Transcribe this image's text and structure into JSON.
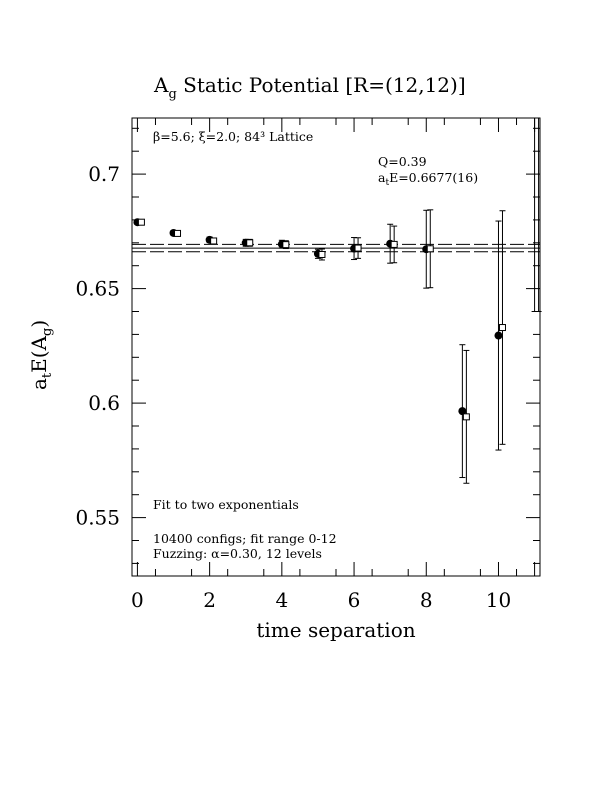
{
  "chart_data": {
    "type": "scatter",
    "title_main": "A",
    "title_sub": "g",
    "title_rest": " Static Potential [R=(12,12)]",
    "xlabel": "time separation",
    "ylabel_parts": [
      "a",
      "t",
      "E(A",
      "g",
      ")"
    ],
    "xlim": [
      -0.15,
      11.15
    ],
    "ylim": [
      0.5245,
      0.7245
    ],
    "xticks": [
      0,
      2,
      4,
      6,
      8,
      10
    ],
    "xtick_labels": [
      "0",
      "2",
      "4",
      "6",
      "8",
      "10"
    ],
    "yticks": [
      0.55,
      0.6,
      0.65,
      0.7
    ],
    "ytick_labels": [
      "0.55",
      "0.6",
      "0.65",
      "0.7"
    ],
    "annotations": {
      "lattice": "β=5.6; ξ=2.0; 84³ Lattice",
      "q": "Q=0.39",
      "fit_prefix": "a",
      "fit_sub": "t",
      "fit_value": "E=0.6677(16)",
      "fit_type": "Fit to two exponentials",
      "configs": "10400 configs; fit range 0-12",
      "fuzzing": "Fuzzing: α=0.30, 12 levels"
    },
    "fit": {
      "value": 0.6677,
      "error": 0.0016,
      "x_range": [
        -0.15,
        11.15
      ]
    },
    "series": [
      {
        "marker": "filled-circle",
        "points": [
          {
            "x": 0,
            "y": 0.679,
            "err": 0.0007
          },
          {
            "x": 1,
            "y": 0.6743,
            "err": 0.001
          },
          {
            "x": 2,
            "y": 0.6713,
            "err": 0.0012
          },
          {
            "x": 3,
            "y": 0.67,
            "err": 0.0015
          },
          {
            "x": 4,
            "y": 0.6694,
            "err": 0.0017
          },
          {
            "x": 5,
            "y": 0.6652,
            "err": 0.002
          },
          {
            "x": 6,
            "y": 0.6675,
            "err": 0.0048
          },
          {
            "x": 7,
            "y": 0.6696,
            "err": 0.0085
          },
          {
            "x": 8,
            "y": 0.6672,
            "err": 0.017
          },
          {
            "x": 9,
            "y": 0.5965,
            "err": 0.029
          },
          {
            "x": 10,
            "y": 0.6295,
            "err": 0.05
          },
          {
            "x": 11,
            "y": 0.725,
            "err": 0.085
          }
        ]
      },
      {
        "marker": "open-square",
        "points": [
          {
            "x": 0,
            "y": 0.679,
            "err": 0.0007
          },
          {
            "x": 1,
            "y": 0.6741,
            "err": 0.001
          },
          {
            "x": 2,
            "y": 0.6708,
            "err": 0.0012
          },
          {
            "x": 3,
            "y": 0.67,
            "err": 0.0015
          },
          {
            "x": 4,
            "y": 0.6692,
            "err": 0.0017
          },
          {
            "x": 5,
            "y": 0.6649,
            "err": 0.0024
          },
          {
            "x": 6,
            "y": 0.6677,
            "err": 0.0045
          },
          {
            "x": 7,
            "y": 0.6693,
            "err": 0.008
          },
          {
            "x": 8,
            "y": 0.6674,
            "err": 0.017
          },
          {
            "x": 9,
            "y": 0.594,
            "err": 0.029
          },
          {
            "x": 10,
            "y": 0.633,
            "err": 0.051
          },
          {
            "x": 11,
            "y": 0.727,
            "err": 0.087
          }
        ]
      }
    ]
  }
}
